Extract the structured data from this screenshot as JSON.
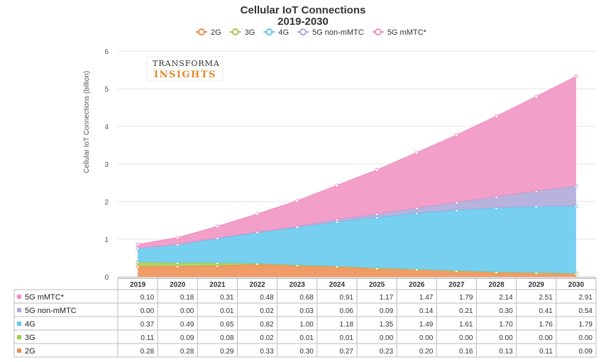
{
  "chart_data": {
    "type": "area",
    "title": "Cellular IoT Connections",
    "subtitle": "2019-2030",
    "ylabel": "Cellular IoT Connections (billion)",
    "xlabel": "",
    "ylim": [
      0,
      6
    ],
    "yticks": [
      "0",
      "1",
      "2",
      "3",
      "4",
      "5",
      "6"
    ],
    "stacked": true,
    "grid": true,
    "legend_position": "top",
    "x": [
      "2019",
      "2020",
      "2021",
      "2022",
      "2023",
      "2024",
      "2025",
      "2026",
      "2027",
      "2028",
      "2029",
      "2030"
    ],
    "x_display": [
      "2019",
      "2020",
      "2021",
      "2022",
      "2023",
      "2024",
      "2025",
      "2026",
      "2027",
      "2028",
      "2029",
      "2030"
    ],
    "series": [
      {
        "name": "2G",
        "color": "#ef8a4c",
        "values": [
          0.28,
          0.28,
          0.29,
          0.33,
          0.3,
          0.27,
          0.23,
          0.2,
          0.16,
          0.13,
          0.11,
          0.09
        ]
      },
      {
        "name": "3G",
        "color": "#a8c84b",
        "values": [
          0.11,
          0.09,
          0.08,
          0.02,
          0.01,
          0.01,
          0.0,
          0.0,
          0.0,
          0.0,
          0.0,
          0.0
        ]
      },
      {
        "name": "4G",
        "color": "#60c8ef",
        "values": [
          0.37,
          0.49,
          0.65,
          0.82,
          1.0,
          1.18,
          1.35,
          1.49,
          1.61,
          1.7,
          1.76,
          1.79
        ]
      },
      {
        "name": "5G non-mMTC",
        "color": "#aba6d8",
        "values": [
          0.0,
          0.0,
          0.01,
          0.02,
          0.03,
          0.06,
          0.09,
          0.14,
          0.21,
          0.3,
          0.41,
          0.54
        ]
      },
      {
        "name": "5G mMTC*",
        "color": "#f08fbf",
        "values": [
          0.1,
          0.18,
          0.31,
          0.48,
          0.68,
          0.91,
          1.17,
          1.47,
          1.79,
          2.14,
          2.51,
          2.91
        ]
      }
    ],
    "table": {
      "rows": [
        {
          "label": "5G mMTC*",
          "color": "#f08fbf",
          "cells": [
            "0.10",
            "0.18",
            "0.31",
            "0.48",
            "0.68",
            "0.91",
            "1.17",
            "1.47",
            "1.79",
            "2.14",
            "2.51",
            "2.91"
          ]
        },
        {
          "label": "5G non-mMTC",
          "color": "#aba6d8",
          "cells": [
            "0.00",
            "0.00",
            "0.01",
            "0.02",
            "0.03",
            "0.06",
            "0.09",
            "0.14",
            "0.21",
            "0.30",
            "0.41",
            "0.54"
          ]
        },
        {
          "label": "4G",
          "color": "#60c8ef",
          "cells": [
            "0.37",
            "0.49",
            "0.65",
            "0.82",
            "1.00",
            "1.18",
            "1.35",
            "1.49",
            "1.61",
            "1.70",
            "1.76",
            "1.79"
          ]
        },
        {
          "label": "3G",
          "color": "#a8c84b",
          "cells": [
            "0.11",
            "0.09",
            "0.08",
            "0.02",
            "0.01",
            "0.01",
            "0.00",
            "0.00",
            "0.00",
            "0.00",
            "0.00",
            "0.00"
          ]
        },
        {
          "label": "2G",
          "color": "#ef8a4c",
          "cells": [
            "0.28",
            "0.28",
            "0.29",
            "0.33",
            "0.30",
            "0.27",
            "0.23",
            "0.20",
            "0.16",
            "0.13",
            "0.11",
            "0.09"
          ]
        }
      ]
    }
  },
  "logo": {
    "line1": "TRANSFORMA",
    "line2": "INSIGHTS"
  }
}
